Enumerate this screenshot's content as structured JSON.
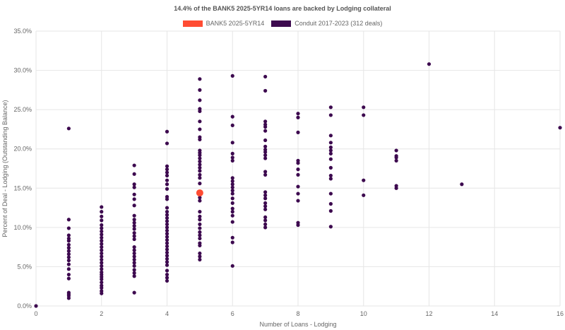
{
  "colors": {
    "highlight": "#ff4c33",
    "peer": "#3d0a4f",
    "grid": "#e6e6e6",
    "axis_text": "#666666"
  },
  "chart_data": {
    "type": "scatter",
    "title": "14.4% of the BANK5 2025-5YR14 loans are backed by Lodging collateral",
    "xlabel": "Number of Loans - Lodging",
    "ylabel": "Percent of Deal - Lodging (Outstanding Balance)",
    "xlim": [
      0,
      16
    ],
    "ylim": [
      0,
      0.35
    ],
    "x_ticks": [
      0,
      2,
      4,
      6,
      8,
      10,
      12,
      14,
      16
    ],
    "y_ticks": [
      0,
      0.05,
      0.1,
      0.15,
      0.2,
      0.25,
      0.3,
      0.35
    ],
    "y_tick_labels": [
      "0.0%",
      "5.0%",
      "10.0%",
      "15.0%",
      "20.0%",
      "25.0%",
      "30.0%",
      "35.0%"
    ],
    "legend_position": "top-center",
    "grid": true,
    "series": [
      {
        "name": "BANK5 2025-5YR14",
        "color": "#ff4c33",
        "points": [
          [
            5,
            0.144
          ]
        ]
      },
      {
        "name": "Conduit 2017-2023 (312 deals)",
        "color": "#3d0a4f",
        "points": [
          [
            0,
            0.0
          ],
          [
            1,
            0.226
          ],
          [
            1,
            0.11
          ],
          [
            1,
            0.099
          ],
          [
            1,
            0.09
          ],
          [
            1,
            0.086
          ],
          [
            1,
            0.083
          ],
          [
            1,
            0.078
          ],
          [
            1,
            0.074
          ],
          [
            1,
            0.07
          ],
          [
            1,
            0.066
          ],
          [
            1,
            0.062
          ],
          [
            1,
            0.058
          ],
          [
            1,
            0.053
          ],
          [
            1,
            0.047
          ],
          [
            1,
            0.04
          ],
          [
            1,
            0.035
          ],
          [
            1,
            0.017
          ],
          [
            1,
            0.015
          ],
          [
            1,
            0.013
          ],
          [
            1,
            0.01
          ],
          [
            2,
            0.126
          ],
          [
            2,
            0.12
          ],
          [
            2,
            0.114
          ],
          [
            2,
            0.109
          ],
          [
            2,
            0.103
          ],
          [
            2,
            0.099
          ],
          [
            2,
            0.095
          ],
          [
            2,
            0.091
          ],
          [
            2,
            0.087
          ],
          [
            2,
            0.083
          ],
          [
            2,
            0.079
          ],
          [
            2,
            0.075
          ],
          [
            2,
            0.071
          ],
          [
            2,
            0.067
          ],
          [
            2,
            0.063
          ],
          [
            2,
            0.059
          ],
          [
            2,
            0.055
          ],
          [
            2,
            0.051
          ],
          [
            2,
            0.047
          ],
          [
            2,
            0.043
          ],
          [
            2,
            0.04
          ],
          [
            2,
            0.037
          ],
          [
            2,
            0.034
          ],
          [
            2,
            0.03
          ],
          [
            2,
            0.026
          ],
          [
            2,
            0.023
          ],
          [
            2,
            0.019
          ],
          [
            2,
            0.016
          ],
          [
            3,
            0.179
          ],
          [
            3,
            0.168
          ],
          [
            3,
            0.155
          ],
          [
            3,
            0.151
          ],
          [
            3,
            0.142
          ],
          [
            3,
            0.136
          ],
          [
            3,
            0.128
          ],
          [
            3,
            0.115
          ],
          [
            3,
            0.11
          ],
          [
            3,
            0.106
          ],
          [
            3,
            0.102
          ],
          [
            3,
            0.098
          ],
          [
            3,
            0.093
          ],
          [
            3,
            0.089
          ],
          [
            3,
            0.085
          ],
          [
            3,
            0.075
          ],
          [
            3,
            0.071
          ],
          [
            3,
            0.067
          ],
          [
            3,
            0.063
          ],
          [
            3,
            0.059
          ],
          [
            3,
            0.055
          ],
          [
            3,
            0.051
          ],
          [
            3,
            0.046
          ],
          [
            3,
            0.042
          ],
          [
            3,
            0.038
          ],
          [
            3,
            0.017
          ],
          [
            4,
            0.222
          ],
          [
            4,
            0.207
          ],
          [
            4,
            0.178
          ],
          [
            4,
            0.174
          ],
          [
            4,
            0.17
          ],
          [
            4,
            0.166
          ],
          [
            4,
            0.16
          ],
          [
            4,
            0.155
          ],
          [
            4,
            0.149
          ],
          [
            4,
            0.139
          ],
          [
            4,
            0.136
          ],
          [
            4,
            0.125
          ],
          [
            4,
            0.12
          ],
          [
            4,
            0.116
          ],
          [
            4,
            0.112
          ],
          [
            4,
            0.108
          ],
          [
            4,
            0.104
          ],
          [
            4,
            0.1
          ],
          [
            4,
            0.096
          ],
          [
            4,
            0.092
          ],
          [
            4,
            0.088
          ],
          [
            4,
            0.084
          ],
          [
            4,
            0.08
          ],
          [
            4,
            0.076
          ],
          [
            4,
            0.072
          ],
          [
            4,
            0.068
          ],
          [
            4,
            0.064
          ],
          [
            4,
            0.06
          ],
          [
            4,
            0.056
          ],
          [
            4,
            0.052
          ],
          [
            4,
            0.045
          ],
          [
            4,
            0.04
          ],
          [
            4,
            0.036
          ],
          [
            4,
            0.032
          ],
          [
            5,
            0.289
          ],
          [
            5,
            0.275
          ],
          [
            5,
            0.262
          ],
          [
            5,
            0.251
          ],
          [
            5,
            0.248
          ],
          [
            5,
            0.235
          ],
          [
            5,
            0.225
          ],
          [
            5,
            0.215
          ],
          [
            5,
            0.212
          ],
          [
            5,
            0.198
          ],
          [
            5,
            0.195
          ],
          [
            5,
            0.192
          ],
          [
            5,
            0.188
          ],
          [
            5,
            0.184
          ],
          [
            5,
            0.18
          ],
          [
            5,
            0.176
          ],
          [
            5,
            0.172
          ],
          [
            5,
            0.167
          ],
          [
            5,
            0.163
          ],
          [
            5,
            0.156
          ],
          [
            5,
            0.138
          ],
          [
            5,
            0.134
          ],
          [
            5,
            0.12
          ],
          [
            5,
            0.114
          ],
          [
            5,
            0.11
          ],
          [
            5,
            0.104
          ],
          [
            5,
            0.099
          ],
          [
            5,
            0.094
          ],
          [
            5,
            0.09
          ],
          [
            5,
            0.086
          ],
          [
            5,
            0.08
          ],
          [
            5,
            0.077
          ],
          [
            5,
            0.067
          ],
          [
            5,
            0.063
          ],
          [
            5,
            0.059
          ],
          [
            6,
            0.293
          ],
          [
            6,
            0.241
          ],
          [
            6,
            0.23
          ],
          [
            6,
            0.208
          ],
          [
            6,
            0.194
          ],
          [
            6,
            0.189
          ],
          [
            6,
            0.185
          ],
          [
            6,
            0.163
          ],
          [
            6,
            0.159
          ],
          [
            6,
            0.155
          ],
          [
            6,
            0.151
          ],
          [
            6,
            0.147
          ],
          [
            6,
            0.143
          ],
          [
            6,
            0.137
          ],
          [
            6,
            0.131
          ],
          [
            6,
            0.124
          ],
          [
            6,
            0.12
          ],
          [
            6,
            0.115
          ],
          [
            6,
            0.107
          ],
          [
            6,
            0.087
          ],
          [
            6,
            0.081
          ],
          [
            6,
            0.051
          ],
          [
            7,
            0.292
          ],
          [
            7,
            0.274
          ],
          [
            7,
            0.235
          ],
          [
            7,
            0.231
          ],
          [
            7,
            0.228
          ],
          [
            7,
            0.223
          ],
          [
            7,
            0.211
          ],
          [
            7,
            0.203
          ],
          [
            7,
            0.199
          ],
          [
            7,
            0.196
          ],
          [
            7,
            0.192
          ],
          [
            7,
            0.188
          ],
          [
            7,
            0.171
          ],
          [
            7,
            0.167
          ],
          [
            7,
            0.145
          ],
          [
            7,
            0.141
          ],
          [
            7,
            0.137
          ],
          [
            7,
            0.131
          ],
          [
            7,
            0.127
          ],
          [
            7,
            0.123
          ],
          [
            7,
            0.113
          ],
          [
            7,
            0.109
          ],
          [
            7,
            0.104
          ],
          [
            7,
            0.1
          ],
          [
            8,
            0.245
          ],
          [
            8,
            0.24
          ],
          [
            8,
            0.221
          ],
          [
            8,
            0.185
          ],
          [
            8,
            0.182
          ],
          [
            8,
            0.174
          ],
          [
            8,
            0.167
          ],
          [
            8,
            0.152
          ],
          [
            8,
            0.143
          ],
          [
            8,
            0.134
          ],
          [
            8,
            0.106
          ],
          [
            8,
            0.103
          ],
          [
            9,
            0.253
          ],
          [
            9,
            0.243
          ],
          [
            9,
            0.217
          ],
          [
            9,
            0.208
          ],
          [
            9,
            0.202
          ],
          [
            9,
            0.198
          ],
          [
            9,
            0.194
          ],
          [
            9,
            0.187
          ],
          [
            9,
            0.176
          ],
          [
            9,
            0.166
          ],
          [
            9,
            0.162
          ],
          [
            9,
            0.143
          ],
          [
            9,
            0.13
          ],
          [
            9,
            0.121
          ],
          [
            9,
            0.101
          ],
          [
            10,
            0.253
          ],
          [
            10,
            0.243
          ],
          [
            10,
            0.16
          ],
          [
            10,
            0.141
          ],
          [
            11,
            0.198
          ],
          [
            11,
            0.191
          ],
          [
            11,
            0.189
          ],
          [
            11,
            0.185
          ],
          [
            11,
            0.153
          ],
          [
            11,
            0.15
          ],
          [
            12,
            0.308
          ],
          [
            13,
            0.155
          ],
          [
            16,
            0.227
          ]
        ]
      }
    ]
  }
}
